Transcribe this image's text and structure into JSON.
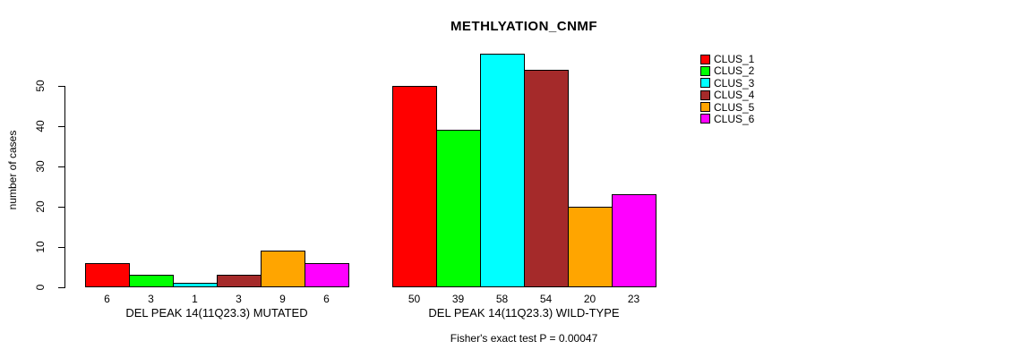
{
  "chart_data": {
    "type": "bar",
    "title": "METHLYATION_CNMF",
    "ylabel": "number of cases",
    "ylim": [
      0,
      58
    ],
    "yticks": [
      0,
      10,
      20,
      30,
      40,
      50
    ],
    "grid": false,
    "legend_position": "right",
    "bar_value_labels": true,
    "series": [
      {
        "name": "CLUS_1",
        "color": "#FF0000"
      },
      {
        "name": "CLUS_2",
        "color": "#00FF00"
      },
      {
        "name": "CLUS_3",
        "color": "#00FFFF"
      },
      {
        "name": "CLUS_4",
        "color": "#A52A2A"
      },
      {
        "name": "CLUS_5",
        "color": "#FFA500"
      },
      {
        "name": "CLUS_6",
        "color": "#FF00FF"
      }
    ],
    "groups": [
      {
        "label": "DEL PEAK 14(11Q23.3) MUTATED",
        "values": [
          6,
          3,
          1,
          3,
          9,
          6
        ]
      },
      {
        "label": "DEL PEAK 14(11Q23.3) WILD-TYPE",
        "values": [
          50,
          39,
          58,
          54,
          20,
          23
        ]
      }
    ],
    "annotation": "Fisher's exact test P = 0.00047",
    "colors": {
      "background": "#FFFFFF",
      "axis": "#000000",
      "text": "#000000"
    }
  }
}
